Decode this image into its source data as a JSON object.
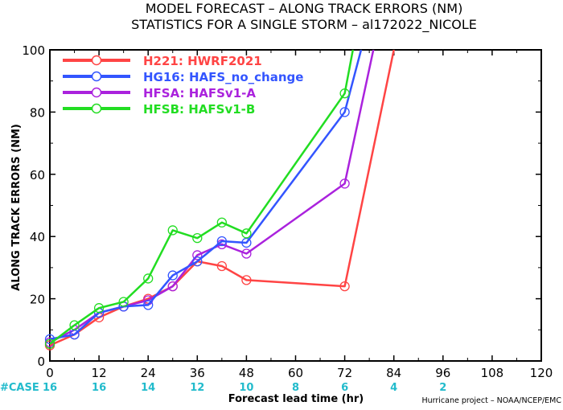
{
  "chart_data": {
    "type": "line",
    "title": "MODEL FORECAST – ALONG TRACK ERRORS (NM)",
    "subtitle": "STATISTICS FOR A SINGLE STORM – al172022_NICOLE",
    "xlabel": "Forecast lead time (hr)",
    "ylabel": "ALONG TRACK ERRORS (NM)",
    "xlim": [
      0,
      120
    ],
    "ylim": [
      0,
      100
    ],
    "xticks": [
      0,
      12,
      24,
      36,
      48,
      60,
      72,
      84,
      96,
      108,
      120
    ],
    "yticks": [
      0,
      20,
      40,
      60,
      80,
      100
    ],
    "grid": false,
    "legend_position": "top-left",
    "case_label": "#CASE",
    "cases": [
      {
        "x": 0,
        "n": "16"
      },
      {
        "x": 12,
        "n": "16"
      },
      {
        "x": 24,
        "n": "14"
      },
      {
        "x": 36,
        "n": "12"
      },
      {
        "x": 48,
        "n": "10"
      },
      {
        "x": 60,
        "n": "8"
      },
      {
        "x": 72,
        "n": "6"
      },
      {
        "x": 84,
        "n": "4"
      },
      {
        "x": 96,
        "n": "2"
      }
    ],
    "credit": "Hurricane project – NOAA/NCEP/EMC",
    "series": [
      {
        "name": "H221",
        "desc": "HWRF2021",
        "color": "#ff4444",
        "x": [
          0,
          6,
          12,
          18,
          24,
          30,
          36,
          42,
          48,
          72,
          84
        ],
        "y": [
          5,
          8.5,
          14,
          17.5,
          20,
          24,
          32,
          30.5,
          26,
          24,
          100
        ]
      },
      {
        "name": "HG16",
        "desc": "HAFS_no_change",
        "color": "#3355ff",
        "x": [
          0,
          6,
          12,
          18,
          24,
          30,
          36,
          42,
          48,
          72,
          76
        ],
        "y": [
          7,
          8.5,
          15.5,
          17.5,
          18,
          27.5,
          32,
          38.5,
          38,
          80,
          100
        ]
      },
      {
        "name": "HFSA",
        "desc": "HAFSv1-A",
        "color": "#aa22dd",
        "x": [
          0,
          6,
          12,
          18,
          24,
          30,
          36,
          42,
          48,
          72,
          79
        ],
        "y": [
          6,
          10,
          15.5,
          17.5,
          19.5,
          24,
          34,
          37.5,
          34.5,
          57,
          100
        ]
      },
      {
        "name": "HFSB",
        "desc": "HAFSv1-B",
        "color": "#22dd22",
        "x": [
          0,
          6,
          12,
          18,
          24,
          30,
          36,
          42,
          48,
          72,
          74
        ],
        "y": [
          5.5,
          11.5,
          17,
          19,
          26.5,
          42,
          39.5,
          44.5,
          41,
          86,
          100
        ]
      }
    ]
  }
}
